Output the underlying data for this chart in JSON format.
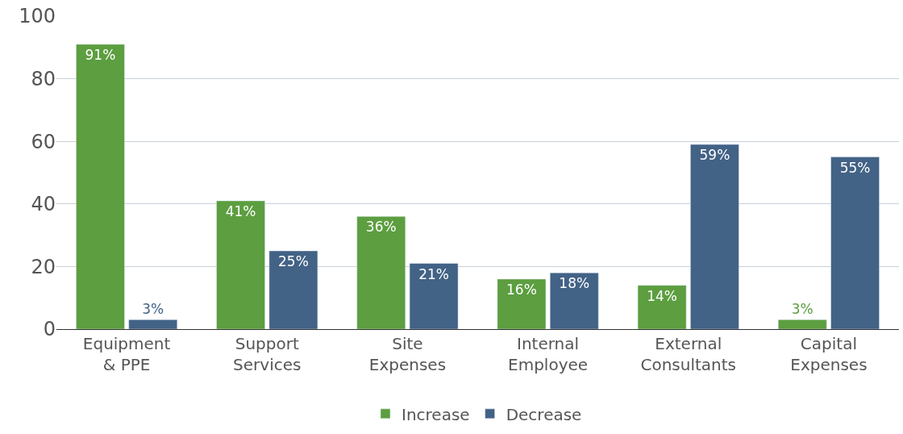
{
  "chart_data": {
    "type": "bar",
    "categories": [
      "Equipment & PPE",
      "Support Services",
      "Site Expenses",
      "Internal Employee",
      "External Consultants",
      "Capital Expenses"
    ],
    "series": [
      {
        "name": "Increase",
        "color": "#5c9e40",
        "values": [
          91,
          41,
          36,
          16,
          14,
          3
        ],
        "value_labels": [
          "91%",
          "41%",
          "36%",
          "16%",
          "14%",
          "3%"
        ]
      },
      {
        "name": "Decrease",
        "color": "#426286",
        "values": [
          3,
          25,
          21,
          18,
          59,
          55
        ],
        "value_labels": [
          "3%",
          "25%",
          "21%",
          "18%",
          "59%",
          "55%"
        ]
      }
    ],
    "ylim": [
      0,
      100
    ],
    "yticks": [
      0,
      20,
      40,
      60,
      80,
      100
    ],
    "grid": "y",
    "legend": "bottom"
  }
}
